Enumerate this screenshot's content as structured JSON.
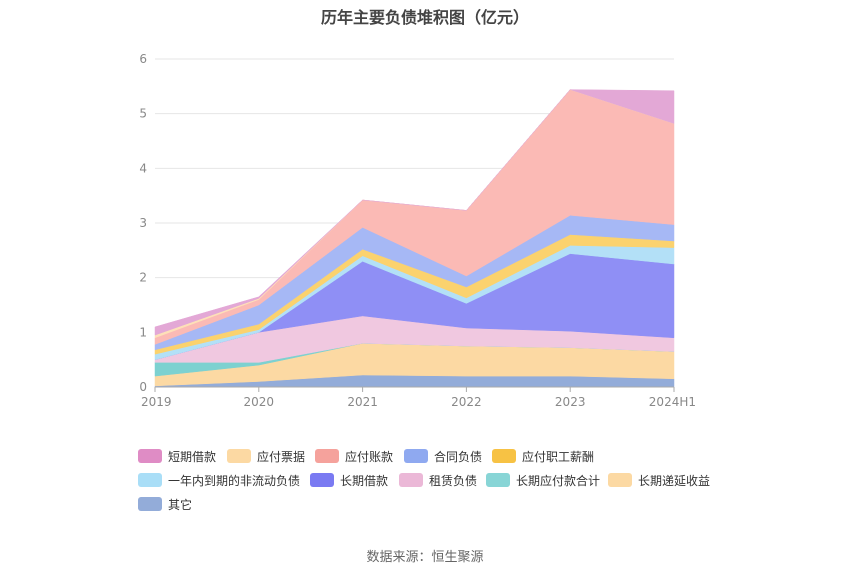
{
  "chart_data": {
    "type": "area",
    "stacked": true,
    "title": "历年主要负债堆积图（亿元）",
    "categories": [
      "2019",
      "2020",
      "2021",
      "2022",
      "2023",
      "2024H1"
    ],
    "ylim": [
      0,
      6
    ],
    "yticks": [
      "0",
      "1",
      "2",
      "3",
      "4",
      "5",
      "6"
    ],
    "grid": "horizontal",
    "legend_position": "bottom",
    "series": [
      {
        "name": "其它",
        "color": "#93acd9",
        "values": [
          0.02,
          0.1,
          0.22,
          0.2,
          0.2,
          0.15
        ]
      },
      {
        "name": "长期递延收益",
        "color": "#fcd9a3",
        "values": [
          0.18,
          0.3,
          0.58,
          0.55,
          0.52,
          0.5
        ]
      },
      {
        "name": "长期应付款合计",
        "color": "#7dd1d0",
        "values": [
          0.25,
          0.05,
          0.0,
          0.0,
          0.0,
          0.0
        ]
      },
      {
        "name": "租赁负债",
        "color": "#f0c8e0",
        "values": [
          0.05,
          0.55,
          0.5,
          0.33,
          0.3,
          0.25
        ]
      },
      {
        "name": "长期借款",
        "color": "#8f8ff5",
        "values": [
          0.0,
          0.0,
          1.0,
          0.45,
          1.42,
          1.35
        ]
      },
      {
        "name": "一年内到期的非流动负债",
        "color": "#b3e0f7",
        "values": [
          0.1,
          0.05,
          0.1,
          0.1,
          0.15,
          0.3
        ]
      },
      {
        "name": "应付职工薪酬",
        "color": "#fbd26e",
        "values": [
          0.08,
          0.1,
          0.12,
          0.2,
          0.2,
          0.12
        ]
      },
      {
        "name": "合同负债",
        "color": "#a6b8f5",
        "values": [
          0.1,
          0.35,
          0.4,
          0.2,
          0.35,
          0.3
        ]
      },
      {
        "name": "应付账款",
        "color": "#fbbab5",
        "values": [
          0.12,
          0.1,
          0.5,
          1.2,
          2.3,
          1.85
        ]
      },
      {
        "name": "应付票据",
        "color": "#fde0b8",
        "values": [
          0.05,
          0.02,
          0.0,
          0.0,
          0.0,
          0.0
        ]
      },
      {
        "name": "短期借款",
        "color": "#e3a8d6",
        "values": [
          0.15,
          0.03,
          0.0,
          0.0,
          0.0,
          0.6
        ]
      }
    ],
    "source": "数据来源：恒生聚源"
  },
  "legend": {
    "items": [
      {
        "label": "短期借款",
        "color": "#df8cc5"
      },
      {
        "label": "应付票据",
        "color": "#fcd9a3"
      },
      {
        "label": "应付账款",
        "color": "#f5a29c"
      },
      {
        "label": "合同负债",
        "color": "#8fa9f0"
      },
      {
        "label": "应付职工薪酬",
        "color": "#f7c244"
      },
      {
        "label": "一年内到期的非流动负债",
        "color": "#a9def7"
      },
      {
        "label": "长期借款",
        "color": "#7a7af2"
      },
      {
        "label": "租赁负债",
        "color": "#ebb8d7"
      },
      {
        "label": "长期应付款合计",
        "color": "#88d5d6"
      },
      {
        "label": "长期递延收益",
        "color": "#fcd9a3"
      },
      {
        "label": "其它",
        "color": "#93acd9"
      }
    ]
  }
}
